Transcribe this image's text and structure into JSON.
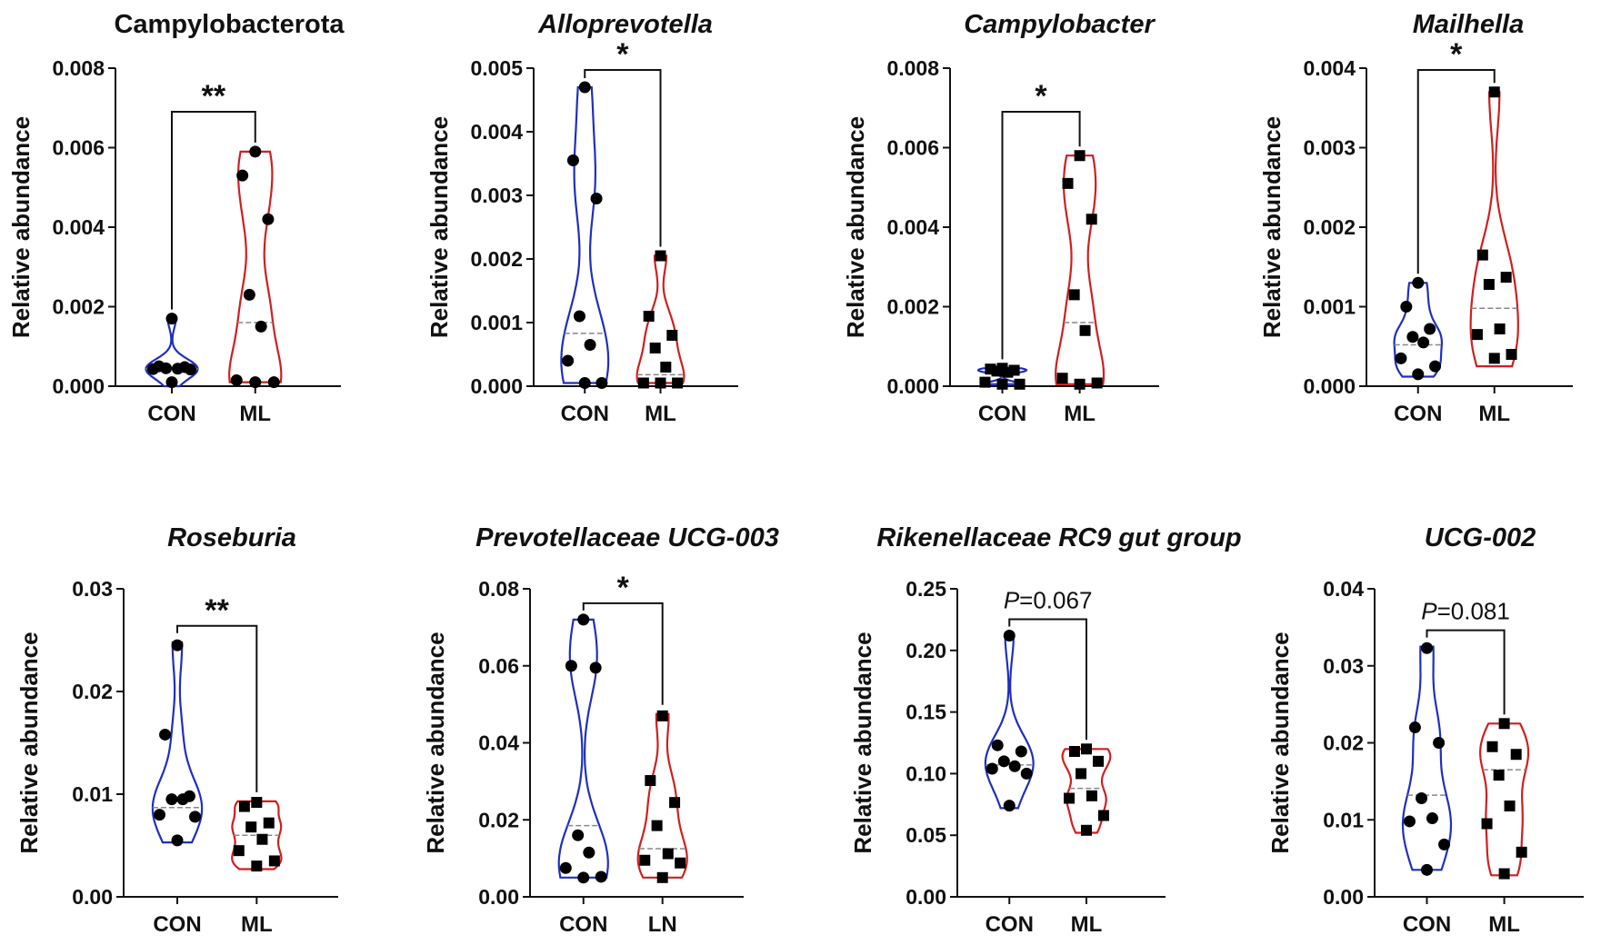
{
  "chart_data": [
    {
      "type": "violin",
      "title": "Campylobacterota",
      "italic": false,
      "ylabel": "Relative abundance",
      "ylim": [
        0,
        0.008
      ],
      "yticks": [
        "0.000",
        "0.002",
        "0.004",
        "0.006",
        "0.008"
      ],
      "yticks_values": [
        0,
        0.002,
        0.004,
        0.006,
        0.008
      ],
      "categories": [
        "CON",
        "ML"
      ],
      "series": [
        {
          "name": "CON",
          "color": "#1f2fbf",
          "marker": "circle",
          "values": [
            0.0017,
            0.0005,
            0.00048,
            0.00045,
            0.00044,
            0.00043,
            0.00042,
            0.0001
          ],
          "median": 0.00044,
          "violin_range": [
            0.0,
            0.0017
          ]
        },
        {
          "name": "ML",
          "color": "#cf1f1f",
          "marker": "circle",
          "values": [
            0.0059,
            0.0053,
            0.0042,
            0.0023,
            0.0015,
            0.00015,
            0.0001,
            0.0001
          ],
          "median": 0.0016,
          "violin_range": [
            0.0001,
            0.0059
          ]
        }
      ],
      "significance": "**"
    },
    {
      "type": "violin",
      "title": "Alloprevotella",
      "italic": true,
      "ylabel": "Relative abundance",
      "ylim": [
        0,
        0.005
      ],
      "yticks": [
        "0.000",
        "0.001",
        "0.002",
        "0.003",
        "0.004",
        "0.005"
      ],
      "yticks_values": [
        0,
        0.001,
        0.002,
        0.003,
        0.004,
        0.005
      ],
      "categories": [
        "CON",
        "ML"
      ],
      "series": [
        {
          "name": "CON",
          "color": "#1f2fbf",
          "marker": "circle",
          "values": [
            0.0047,
            0.00355,
            0.00295,
            0.0011,
            0.00065,
            0.0004,
            5e-05,
            5e-05
          ],
          "median": 0.00083,
          "violin_range": [
            5e-05,
            0.0047
          ]
        },
        {
          "name": "ML",
          "color": "#cf1f1f",
          "marker": "square",
          "values": [
            0.00205,
            0.0011,
            0.0008,
            0.0006,
            0.0003,
            5e-05,
            5e-05,
            5e-05
          ],
          "median": 0.00018,
          "violin_range": [
            5e-05,
            0.00205
          ]
        }
      ],
      "significance": "*"
    },
    {
      "type": "violin",
      "title": "Campylobacter",
      "italic": true,
      "ylabel": "Relative abundance",
      "ylim": [
        0,
        0.008
      ],
      "yticks": [
        "0.000",
        "0.002",
        "0.004",
        "0.006",
        "0.008"
      ],
      "yticks_values": [
        0,
        0.002,
        0.004,
        0.006,
        0.008
      ],
      "categories": [
        "CON",
        "ML"
      ],
      "series": [
        {
          "name": "CON",
          "color": "#1f2fbf",
          "marker": "square",
          "values": [
            0.00045,
            0.00043,
            0.0004,
            0.00038,
            0.00035,
            0.0001,
            5e-05,
            5e-05
          ],
          "median": 0.0002,
          "violin_range": [
            5e-05,
            0.00045
          ]
        },
        {
          "name": "ML",
          "color": "#cf1f1f",
          "marker": "square",
          "values": [
            0.0058,
            0.0051,
            0.0042,
            0.0023,
            0.0014,
            0.0002,
            8e-05,
            5e-05
          ],
          "median": 0.0016,
          "violin_range": [
            5e-05,
            0.0058
          ]
        }
      ],
      "significance": "*"
    },
    {
      "type": "violin",
      "title": "Mailhella",
      "italic": true,
      "ylabel": "Relative abundance",
      "ylim": [
        0,
        0.004
      ],
      "yticks": [
        "0.000",
        "0.001",
        "0.002",
        "0.003",
        "0.004"
      ],
      "yticks_values": [
        0,
        0.001,
        0.002,
        0.003,
        0.004
      ],
      "categories": [
        "CON",
        "ML"
      ],
      "series": [
        {
          "name": "CON",
          "color": "#1f2fbf",
          "marker": "circle",
          "values": [
            0.0013,
            0.001,
            0.00072,
            0.00062,
            0.00055,
            0.00035,
            0.00025,
            0.00015
          ],
          "median": 0.00052,
          "violin_range": [
            0.00012,
            0.0013
          ]
        },
        {
          "name": "ML",
          "color": "#cf1f1f",
          "marker": "square",
          "values": [
            0.0037,
            0.00165,
            0.00137,
            0.00128,
            0.00072,
            0.00065,
            0.0004,
            0.00035
          ],
          "median": 0.00098,
          "violin_range": [
            0.00025,
            0.0037
          ]
        }
      ],
      "significance": "*"
    },
    {
      "type": "violin",
      "title": "Roseburia",
      "italic": true,
      "ylabel": "Relative abundance",
      "ylim": [
        0,
        0.03
      ],
      "yticks": [
        "0.00",
        "0.01",
        "0.02",
        "0.03"
      ],
      "yticks_values": [
        0,
        0.01,
        0.02,
        0.03
      ],
      "categories": [
        "CON",
        "ML"
      ],
      "series": [
        {
          "name": "CON",
          "color": "#1f2fbf",
          "marker": "circle",
          "values": [
            0.0245,
            0.0158,
            0.0098,
            0.0095,
            0.0095,
            0.008,
            0.0078,
            0.0055
          ],
          "median": 0.0087,
          "violin_range": [
            0.0053,
            0.0248
          ]
        },
        {
          "name": "ML",
          "color": "#cf1f1f",
          "marker": "square",
          "values": [
            0.0092,
            0.0088,
            0.0072,
            0.0068,
            0.0056,
            0.0045,
            0.0035,
            0.003
          ],
          "median": 0.006,
          "violin_range": [
            0.0027,
            0.0093
          ]
        }
      ],
      "significance": "**"
    },
    {
      "type": "violin",
      "title": "Prevotellaceae UCG-003",
      "italic": true,
      "ylabel": "Relative abundance",
      "ylim": [
        0,
        0.08
      ],
      "yticks": [
        "0.00",
        "0.02",
        "0.04",
        "0.06",
        "0.08"
      ],
      "yticks_values": [
        0,
        0.02,
        0.04,
        0.06,
        0.08
      ],
      "categories": [
        "CON",
        "LN"
      ],
      "series": [
        {
          "name": "CON",
          "color": "#1f2fbf",
          "marker": "circle",
          "values": [
            0.072,
            0.06,
            0.0595,
            0.016,
            0.0115,
            0.0075,
            0.0052,
            0.005
          ],
          "median": 0.0185,
          "violin_range": [
            0.005,
            0.072
          ]
        },
        {
          "name": "LN",
          "color": "#cf1f1f",
          "marker": "square",
          "values": [
            0.047,
            0.0302,
            0.0245,
            0.0185,
            0.0112,
            0.0095,
            0.0088,
            0.005
          ],
          "median": 0.0125,
          "violin_range": [
            0.005,
            0.0475
          ]
        }
      ],
      "significance": "*"
    },
    {
      "type": "violin",
      "title": "Rikenellaceae RC9 gut group",
      "italic": true,
      "ylabel": "Relative abundance",
      "ylim": [
        0,
        0.25
      ],
      "yticks": [
        "0.00",
        "0.05",
        "0.10",
        "0.15",
        "0.20",
        "0.25"
      ],
      "yticks_values": [
        0,
        0.05,
        0.1,
        0.15,
        0.2,
        0.25
      ],
      "categories": [
        "CON",
        "ML"
      ],
      "series": [
        {
          "name": "CON",
          "color": "#1f2fbf",
          "marker": "circle",
          "values": [
            0.212,
            0.123,
            0.118,
            0.11,
            0.106,
            0.104,
            0.1,
            0.074
          ],
          "median": 0.107,
          "violin_range": [
            0.072,
            0.212
          ]
        },
        {
          "name": "ML",
          "color": "#cf1f1f",
          "marker": "square",
          "values": [
            0.12,
            0.118,
            0.11,
            0.1,
            0.082,
            0.08,
            0.066,
            0.054
          ],
          "median": 0.088,
          "violin_range": [
            0.052,
            0.12
          ]
        }
      ],
      "p_value_label": "=0.067",
      "p_symbol": "P"
    },
    {
      "type": "violin",
      "title": "UCG-002",
      "italic": true,
      "ylabel": "Relative abundance",
      "ylim": [
        0,
        0.04
      ],
      "yticks": [
        "0.00",
        "0.01",
        "0.02",
        "0.03",
        "0.04"
      ],
      "yticks_values": [
        0,
        0.01,
        0.02,
        0.03,
        0.04
      ],
      "categories": [
        "CON",
        "ML"
      ],
      "series": [
        {
          "name": "CON",
          "color": "#1f2fbf",
          "marker": "circle",
          "values": [
            0.0323,
            0.022,
            0.02,
            0.0128,
            0.0102,
            0.0098,
            0.0068,
            0.0035
          ],
          "median": 0.0132,
          "violin_range": [
            0.0035,
            0.0325
          ]
        },
        {
          "name": "ML",
          "color": "#cf1f1f",
          "marker": "square",
          "values": [
            0.0225,
            0.0195,
            0.0185,
            0.0158,
            0.0118,
            0.0095,
            0.0058,
            0.003
          ],
          "median": 0.0165,
          "violin_range": [
            0.0028,
            0.0225
          ]
        }
      ],
      "p_value_label": "=0.081",
      "p_symbol": "P"
    }
  ]
}
